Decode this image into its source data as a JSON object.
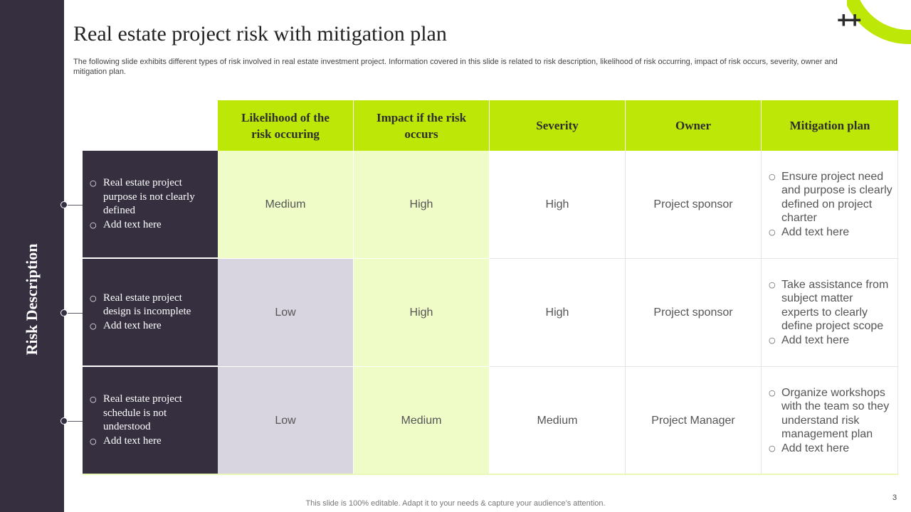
{
  "slide": {
    "title": "Real estate project risk with mitigation plan",
    "subtitle": "The following slide exhibits different types of risk involved in real estate investment project. Information covered in this slide is related to risk description, likelihood of risk occurring, impact of risk occurs, severity, owner and mitigation plan.",
    "side_label": "Risk Description",
    "plus_text": "++",
    "footer": "This slide is 100% editable. Adapt it to your needs & capture your audience’s attention.",
    "page_number": "3",
    "colors": {
      "dark": "#352f3f",
      "accent": "#bde706",
      "light_green": "#f0fcc8",
      "light_gray": "#d9d5e0"
    }
  },
  "table": {
    "headers": [
      "Likelihood of the risk occuring",
      "Impact if the risk occurs",
      "Severity",
      "Owner",
      "Mitigation plan"
    ],
    "rows": [
      {
        "risk": [
          "Real estate project purpose is not clearly defined",
          "Add text here"
        ],
        "likelihood": "Medium",
        "impact": "High",
        "severity": "High",
        "owner": "Project sponsor",
        "mitigation": [
          "Ensure project need and purpose is clearly defined on project charter",
          "Add text here"
        ]
      },
      {
        "risk": [
          "Real estate project design is incomplete",
          "Add text here"
        ],
        "likelihood": "Low",
        "impact": "High",
        "severity": "High",
        "owner": "Project sponsor",
        "mitigation": [
          "Take assistance from subject matter experts to clearly define project scope",
          "Add text here"
        ]
      },
      {
        "risk": [
          "Real estate project schedule is not understood",
          "Add text here"
        ],
        "likelihood": "Low",
        "impact": "Medium",
        "severity": "Medium",
        "owner": "Project Manager",
        "mitigation": [
          "Organize workshops with the team so they understand risk management plan",
          "Add text here"
        ]
      }
    ]
  }
}
